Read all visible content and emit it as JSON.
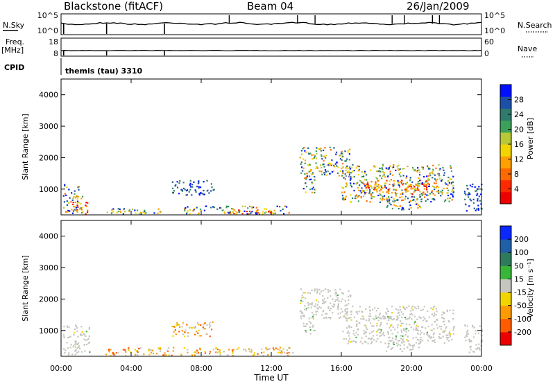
{
  "header": {
    "station": "Blackstone (fitACF)",
    "beam": "Beam 04",
    "date": "26/Jan/2009"
  },
  "top_panels": {
    "nsky_label": "N.Sky",
    "nsky_ticks": [
      "10^5",
      "10^0"
    ],
    "nsearch_label": "N.Search",
    "nsearch_ticks": [
      "10^5",
      "10^0"
    ],
    "freq_label_1": "Freq.",
    "freq_label_2": "[MHz]",
    "freq_ticks": [
      "18",
      "8"
    ],
    "nave_label": "Nave",
    "nave_ticks": [
      "60",
      "0"
    ],
    "cpid_label": "CPID",
    "cpid_value": "themis (tau) 3310"
  },
  "chart_data": [
    {
      "type": "heatmap",
      "name": "power",
      "ylabel": "Slant Range [km]",
      "xlabel": "Time UT",
      "xlim": [
        0,
        24
      ],
      "ylim": [
        180,
        4500
      ],
      "yticks": [
        "4000",
        "3000",
        "2000",
        "1000"
      ],
      "colorbar": {
        "label": "Power [dB]",
        "ticks": [
          "28",
          "24",
          "20",
          "16",
          "12",
          "8",
          "4"
        ],
        "colors": [
          "#0010ff",
          "#1c4fa8",
          "#2f7a6a",
          "#3da05a",
          "#b8c837",
          "#f2d400",
          "#ff9f00",
          "#ff6a00",
          "#ff2a00",
          "#ee0000"
        ]
      },
      "regions": [
        {
          "t0": 0.1,
          "t1": 1.2,
          "r0": 250,
          "r1": 1200,
          "level": "mix"
        },
        {
          "t0": 0.6,
          "t1": 1.6,
          "r0": 220,
          "r1": 600,
          "level": "high"
        },
        {
          "t0": 2.5,
          "t1": 6.0,
          "r0": 230,
          "r1": 420,
          "level": "mix"
        },
        {
          "t0": 6.3,
          "t1": 8.7,
          "r0": 830,
          "r1": 1300,
          "level": "low"
        },
        {
          "t0": 7.0,
          "t1": 13.2,
          "r0": 220,
          "r1": 480,
          "level": "mix"
        },
        {
          "t0": 9.3,
          "t1": 12.3,
          "r0": 230,
          "r1": 360,
          "level": "high"
        },
        {
          "t0": 13.6,
          "t1": 16.5,
          "r0": 1400,
          "r1": 2350,
          "level": "mix"
        },
        {
          "t0": 13.8,
          "t1": 14.5,
          "r0": 900,
          "r1": 1500,
          "level": "mix"
        },
        {
          "t0": 16.0,
          "t1": 22.4,
          "r0": 600,
          "r1": 1800,
          "level": "mix"
        },
        {
          "t0": 17.0,
          "t1": 21.0,
          "r0": 850,
          "r1": 1300,
          "level": "high"
        },
        {
          "t0": 18.5,
          "t1": 20.5,
          "r0": 350,
          "r1": 700,
          "level": "mix"
        },
        {
          "t0": 23.0,
          "t1": 24.0,
          "r0": 300,
          "r1": 1200,
          "level": "low"
        }
      ]
    },
    {
      "type": "heatmap",
      "name": "velocity",
      "ylabel": "Slant Range [km]",
      "xlabel": "Time UT",
      "xlim": [
        0,
        24
      ],
      "ylim": [
        180,
        4500
      ],
      "yticks": [
        "4000",
        "3000",
        "2000",
        "1000"
      ],
      "colorbar": {
        "label": "Velocity [m s⁻¹]",
        "ticks": [
          "200",
          "100",
          "50",
          "15",
          "-15",
          "-50",
          "-100",
          "-200"
        ],
        "colors": [
          "#0a28ff",
          "#1f5fa8",
          "#2e7a5d",
          "#38b63a",
          "#c6c6c0",
          "#f2d400",
          "#ff9a00",
          "#ff5c00",
          "#ee0000"
        ]
      },
      "regions": [
        {
          "t0": 0.1,
          "t1": 1.6,
          "r0": 250,
          "r1": 1200,
          "level": "gray"
        },
        {
          "t0": 6.3,
          "t1": 8.7,
          "r0": 830,
          "r1": 1300,
          "level": "orange"
        },
        {
          "t0": 2.5,
          "t1": 13.2,
          "r0": 220,
          "r1": 480,
          "level": "orange"
        },
        {
          "t0": 13.6,
          "t1": 16.5,
          "r0": 1400,
          "r1": 2350,
          "level": "gray"
        },
        {
          "t0": 13.8,
          "t1": 14.5,
          "r0": 900,
          "r1": 1500,
          "level": "gray"
        },
        {
          "t0": 16.0,
          "t1": 22.4,
          "r0": 600,
          "r1": 1800,
          "level": "gray"
        },
        {
          "t0": 18.5,
          "t1": 20.5,
          "r0": 350,
          "r1": 700,
          "level": "gray"
        },
        {
          "t0": 23.0,
          "t1": 24.0,
          "r0": 300,
          "r1": 1200,
          "level": "gray"
        }
      ]
    }
  ],
  "xticks": [
    "00:00",
    "04:00",
    "08:00",
    "12:00",
    "16:00",
    "20:00",
    "00:00"
  ],
  "xlabel": "Time UT"
}
